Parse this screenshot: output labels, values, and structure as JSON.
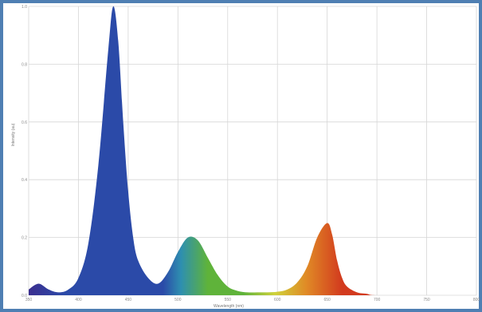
{
  "chart_data": {
    "type": "area",
    "title": "",
    "xlabel": "Wavelength (nm)",
    "ylabel": "Intensity (au)",
    "xlim": [
      350,
      800
    ],
    "ylim": [
      0,
      1.0
    ],
    "grid": true,
    "x_ticks": [
      350,
      400,
      450,
      500,
      550,
      600,
      650,
      700,
      750,
      800
    ],
    "y_ticks": [
      0,
      0.2,
      0.4,
      0.6,
      0.8,
      1.0
    ],
    "series": [
      {
        "x": [
          350,
          360,
          370,
          380,
          390,
          400,
          410,
          420,
          430,
          435,
          440,
          445,
          450,
          455,
          460,
          470,
          480,
          490,
          500,
          510,
          520,
          530,
          540,
          550,
          560,
          570,
          580,
          590,
          600,
          610,
          620,
          630,
          640,
          650,
          655,
          660,
          665,
          670,
          680,
          690,
          700,
          750,
          800
        ],
        "y": [
          0.02,
          0.04,
          0.02,
          0.01,
          0.02,
          0.06,
          0.18,
          0.45,
          0.85,
          1.0,
          0.88,
          0.6,
          0.36,
          0.2,
          0.12,
          0.06,
          0.04,
          0.08,
          0.15,
          0.2,
          0.19,
          0.13,
          0.07,
          0.03,
          0.015,
          0.01,
          0.01,
          0.01,
          0.012,
          0.02,
          0.045,
          0.1,
          0.2,
          0.25,
          0.21,
          0.12,
          0.06,
          0.03,
          0.01,
          0.005,
          0.0,
          0.0,
          0.0
        ]
      }
    ],
    "colors": {
      "violet": "#3b2f8f",
      "blue": "#2b4aa8",
      "cyan": "#2e8fb0",
      "green": "#5fb33a",
      "yellow": "#cfd23a",
      "orange": "#e08a26",
      "red": "#d23a1e",
      "frame": "#4f7fb3",
      "grid": "#d6d6d6"
    }
  }
}
